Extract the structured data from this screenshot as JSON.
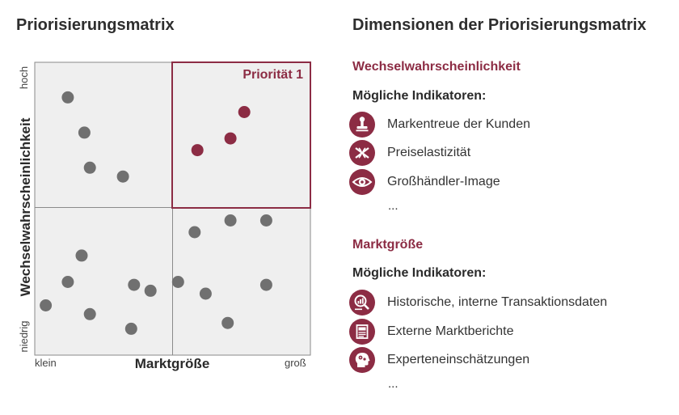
{
  "left_title": "Priorisierungsmatrix",
  "right_title": "Dimensionen der Priorisierungsmatrix",
  "matrix": {
    "priority_label": "Priorität 1",
    "y_axis_title": "Wechselwahrscheinlichkeit",
    "y_high": "hoch",
    "y_low": "niedrig",
    "x_axis_title": "Marktgröße",
    "x_low": "klein",
    "x_high": "groß",
    "colors": {
      "grey_point": "#707070",
      "priority_point": "#8c2c44",
      "grid": "#8a8a8a",
      "background": "#efefef"
    },
    "points": [
      {
        "x": 0.12,
        "y": 0.88,
        "priority": false
      },
      {
        "x": 0.18,
        "y": 0.76,
        "priority": false
      },
      {
        "x": 0.2,
        "y": 0.64,
        "priority": false
      },
      {
        "x": 0.32,
        "y": 0.61,
        "priority": false
      },
      {
        "x": 0.59,
        "y": 0.7,
        "priority": true
      },
      {
        "x": 0.71,
        "y": 0.74,
        "priority": true
      },
      {
        "x": 0.76,
        "y": 0.83,
        "priority": true
      },
      {
        "x": 0.58,
        "y": 0.42,
        "priority": false
      },
      {
        "x": 0.71,
        "y": 0.46,
        "priority": false
      },
      {
        "x": 0.84,
        "y": 0.46,
        "priority": false
      },
      {
        "x": 0.17,
        "y": 0.34,
        "priority": false
      },
      {
        "x": 0.12,
        "y": 0.25,
        "priority": false
      },
      {
        "x": 0.36,
        "y": 0.24,
        "priority": false
      },
      {
        "x": 0.42,
        "y": 0.22,
        "priority": false
      },
      {
        "x": 0.52,
        "y": 0.25,
        "priority": false
      },
      {
        "x": 0.62,
        "y": 0.21,
        "priority": false
      },
      {
        "x": 0.84,
        "y": 0.24,
        "priority": false
      },
      {
        "x": 0.04,
        "y": 0.17,
        "priority": false
      },
      {
        "x": 0.2,
        "y": 0.14,
        "priority": false
      },
      {
        "x": 0.35,
        "y": 0.09,
        "priority": false
      },
      {
        "x": 0.7,
        "y": 0.11,
        "priority": false
      }
    ]
  },
  "sections": [
    {
      "heading": "Wechselwahrscheinlichkeit",
      "sub": "Mögliche Indikatoren:",
      "items": [
        {
          "label": "Markentreue der Kunden",
          "icon": "stamp-icon"
        },
        {
          "label": "Preiselastizität",
          "icon": "elasticity-icon"
        },
        {
          "label": "Großhändler-Image",
          "icon": "eye-icon"
        }
      ],
      "more": "..."
    },
    {
      "heading": "Marktgröße",
      "sub": "Mögliche Indikatoren:",
      "items": [
        {
          "label": "Historische, interne Transaktionsdaten",
          "icon": "data-analysis-icon"
        },
        {
          "label": "Externe Marktberichte",
          "icon": "report-icon"
        },
        {
          "label": "Experteneinschätzungen",
          "icon": "expert-head-icon"
        }
      ],
      "more": "..."
    }
  ]
}
